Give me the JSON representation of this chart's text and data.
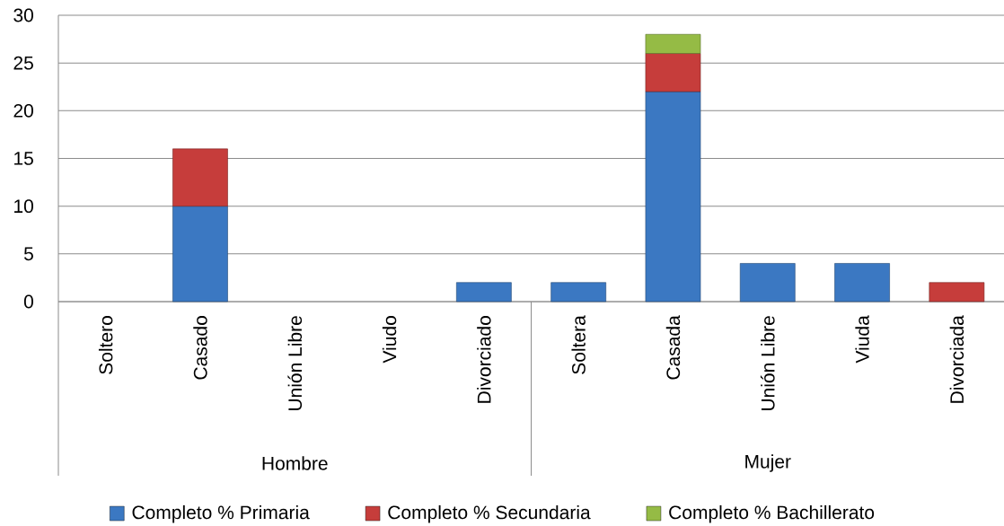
{
  "chart_data": {
    "type": "bar",
    "stacked": true,
    "categories": [
      "Soltero",
      "Casado",
      "Unión Libre",
      "Viudo",
      "Divorciado",
      "Soltera",
      "Casada",
      "Unión Libre",
      "Viuda",
      "Divorciada"
    ],
    "series": [
      {
        "name": "Completo % Primaria",
        "color": "#3b78c2",
        "values": [
          0,
          10,
          0,
          0,
          2,
          2,
          22,
          4,
          4,
          0
        ]
      },
      {
        "name": "Completo % Secundaria",
        "color": "#c63d3b",
        "values": [
          0,
          6,
          0,
          0,
          0,
          0,
          4,
          0,
          0,
          2
        ]
      },
      {
        "name": "Completo % Bachillerato",
        "color": "#95bb45",
        "values": [
          0,
          0,
          0,
          0,
          0,
          0,
          2,
          0,
          0,
          0
        ]
      }
    ],
    "ylim": [
      0,
      30
    ],
    "yticks": [
      0,
      5,
      10,
      15,
      20,
      25,
      30
    ],
    "grid": "y",
    "legend": "bottom",
    "annotations": [
      "Hombre",
      "Mujer"
    ]
  }
}
